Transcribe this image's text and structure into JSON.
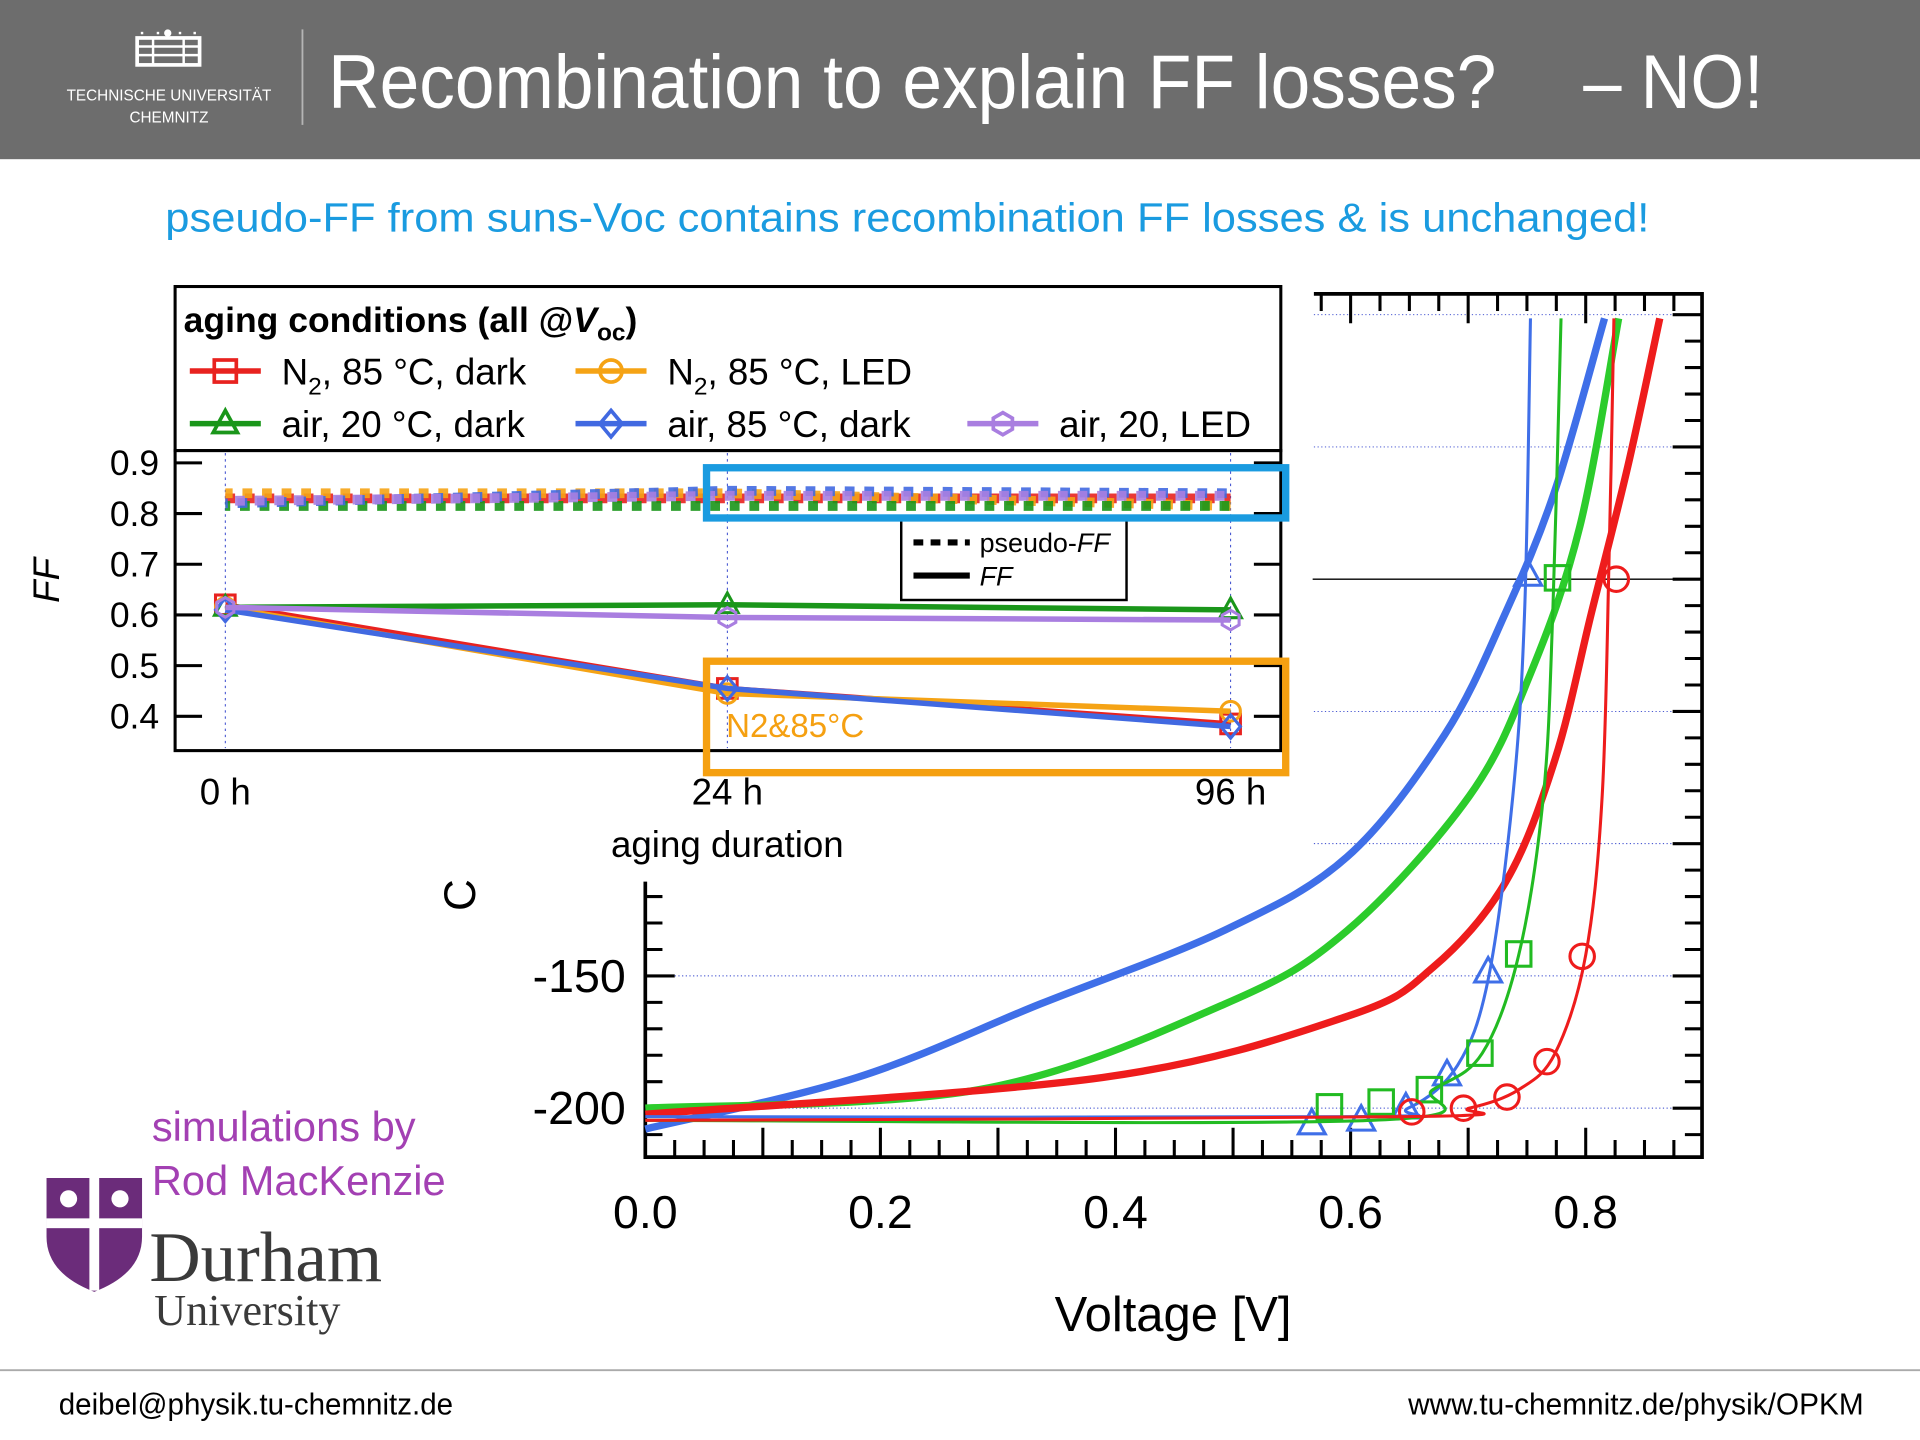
{
  "header": {
    "university_line1": "TECHNISCHE UNIVERSITÄT",
    "university_line2": "CHEMNITZ",
    "title": "Recombination to explain FF losses?",
    "answer": "– NO!"
  },
  "subtitle": "pseudo-FF from suns-Voc contains recombination FF losses & is unchanged!",
  "credit": {
    "line1": "simulations by",
    "line2": "Rod MacKenzie",
    "logo_name": "Durham",
    "logo_sub": "University"
  },
  "footer": {
    "email": "deibel@physik.tu-chemnitz.de",
    "url": "www.tu-chemnitz.de/physik/OPKM"
  },
  "colors": {
    "header_bg": "#6d6d6d",
    "accent_blue": "#1a9be0",
    "accent_orange": "#f5a011",
    "credit_purple": "#a340b3",
    "durham_purple": "#6b2c7a"
  },
  "chart_data": [
    {
      "type": "line",
      "legend_title": {
        "main": "aging conditions (all @",
        "var": "V",
        "sub": "oc",
        "end": ")"
      },
      "legend_placement": "top",
      "categories": [
        "0 h",
        "24 h",
        "96 h"
      ],
      "xlabel": "aging duration",
      "ylabel": "FF",
      "ylim": [
        0.35,
        0.92
      ],
      "yticks": [
        "0.9",
        "0.8",
        "0.7",
        "0.6",
        "0.5",
        "0.4"
      ],
      "yticks_values": [
        0.9,
        0.8,
        0.7,
        0.6,
        0.5,
        0.4
      ],
      "style_legend": {
        "dashed": {
          "pre": "pseudo-",
          "it": "FF"
        },
        "solid": {
          "it": "FF"
        }
      },
      "series": [
        {
          "label": {
            "main": "N",
            "sub": "2",
            "rest": ", 85 °C, dark"
          },
          "color": "#e8221f",
          "marker": "square",
          "FF": [
            0.62,
            0.455,
            0.385
          ],
          "pseudo_FF": [
            0.83,
            0.83,
            0.83
          ]
        },
        {
          "label": {
            "main": "N",
            "sub": "2",
            "rest": ", 85 °C, LED"
          },
          "color": "#f5a315",
          "marker": "circle",
          "FF": [
            0.615,
            0.445,
            0.41
          ],
          "pseudo_FF": [
            0.84,
            0.84,
            0.815
          ]
        },
        {
          "label": {
            "main": "air, 20 °C, dark",
            "sub": "",
            "rest": ""
          },
          "color": "#1a961a",
          "marker": "triangle",
          "FF": [
            0.615,
            0.62,
            0.61
          ],
          "pseudo_FF": [
            0.815,
            0.815,
            0.815
          ]
        },
        {
          "label": {
            "main": "air, 85 °C, dark",
            "sub": "",
            "rest": ""
          },
          "color": "#4169e1",
          "marker": "diamond",
          "FF": [
            0.61,
            0.455,
            0.38
          ],
          "pseudo_FF": [
            0.82,
            0.845,
            0.84
          ]
        },
        {
          "label": {
            "main": "air, 20, LED",
            "sub": "",
            "rest": ""
          },
          "color": "#a97ee0",
          "marker": "hexagon",
          "FF": [
            0.615,
            0.595,
            0.59
          ],
          "pseudo_FF": [
            0.825,
            0.835,
            0.835
          ]
        }
      ],
      "annotations": {
        "highlight_top": "pseudo-FF unchanged",
        "highlight_bottom_label": "N2&85°C"
      }
    },
    {
      "type": "line",
      "xlabel": "Voltage [V]",
      "ylabel": "C",
      "xlim": [
        0.0,
        0.9
      ],
      "ylim": [
        -218,
        108
      ],
      "xticks": [
        "0.0",
        "0.2",
        "0.4",
        "0.6",
        "0.8"
      ],
      "xticks_values": [
        0,
        0.2,
        0.4,
        0.6,
        0.8
      ],
      "yticks": [
        "-150",
        "-200"
      ],
      "yticks_values": [
        -150,
        -200
      ],
      "grid": "horizontal dotted",
      "series": [
        {
          "color": "#3f6fe8",
          "width": "thick",
          "points": [
            [
              0,
              -207.9
            ],
            [
              0.18,
              -188.4
            ],
            [
              0.336,
              -160.6
            ],
            [
              0.492,
              -132.9
            ],
            [
              0.597,
              -105
            ],
            [
              0.68,
              -58.8
            ],
            [
              0.732,
              -12.5
            ],
            [
              0.774,
              33.8
            ],
            [
              0.816,
              98.6
            ]
          ]
        },
        {
          "color": "#2ccc2c",
          "width": "thick",
          "points": [
            [
              0,
              -200
            ],
            [
              0.284,
              -193
            ],
            [
              0.493,
              -160.6
            ],
            [
              0.597,
              -132.9
            ],
            [
              0.701,
              -82
            ],
            [
              0.753,
              -35.7
            ],
            [
              0.795,
              19.9
            ],
            [
              0.828,
              98.6
            ]
          ]
        },
        {
          "color": "#ee1c1c",
          "width": "thick",
          "points": [
            [
              0,
              -202.3
            ],
            [
              0.389,
              -188.4
            ],
            [
              0.597,
              -165.3
            ],
            [
              0.67,
              -146.8
            ],
            [
              0.732,
              -114.4
            ],
            [
              0.774,
              -68
            ],
            [
              0.805,
              -12.5
            ],
            [
              0.836,
              43
            ],
            [
              0.863,
              98.6
            ]
          ]
        },
        {
          "color": "#3f6fe8",
          "width": "thin",
          "marker": "triangle",
          "points": [
            [
              0,
              -203.2
            ],
            [
              0.597,
              -203.2
            ],
            [
              0.649,
              -200
            ],
            [
              0.691,
              -183.8
            ],
            [
              0.717,
              -151.4
            ],
            [
              0.738,
              -82
            ],
            [
              0.748,
              -12.5
            ],
            [
              0.753,
              98.6
            ]
          ],
          "markers": [
            [
              0.567,
              -206
            ],
            [
              0.609,
              -204.6
            ],
            [
              0.647,
              -200
            ],
            [
              0.682,
              -187.5
            ],
            [
              0.717,
              -148.6
            ],
            [
              0.751,
              1.4
            ]
          ]
        },
        {
          "color": "#22bb22",
          "width": "thin",
          "marker": "square",
          "points": [
            [
              0,
              -204.6
            ],
            [
              0.618,
              -204.6
            ],
            [
              0.67,
              -193
            ],
            [
              0.712,
              -179.2
            ],
            [
              0.743,
              -142.1
            ],
            [
              0.764,
              -82
            ],
            [
              0.772,
              -12.5
            ],
            [
              0.779,
              98.6
            ]
          ],
          "markers": [
            [
              0.582,
              -199.5
            ],
            [
              0.626,
              -197.7
            ],
            [
              0.667,
              -193
            ],
            [
              0.71,
              -179.2
            ],
            [
              0.743,
              -141.7
            ],
            [
              0.776,
              0.5
            ]
          ]
        },
        {
          "color": "#ee1c1c",
          "width": "thin",
          "marker": "circle",
          "points": [
            [
              0,
              -204.6
            ],
            [
              0.649,
              -203.2
            ],
            [
              0.701,
              -200
            ],
            [
              0.743,
              -193
            ],
            [
              0.774,
              -179.2
            ],
            [
              0.8,
              -142.1
            ],
            [
              0.814,
              -82
            ],
            [
              0.82,
              10.6
            ],
            [
              0.824,
              98.6
            ]
          ],
          "markers": [
            [
              0.652,
              -201.4
            ],
            [
              0.696,
              -200
            ],
            [
              0.733,
              -195.8
            ],
            [
              0.767,
              -182.4
            ],
            [
              0.797,
              -142.6
            ],
            [
              0.826,
              0
            ]
          ]
        }
      ]
    }
  ]
}
